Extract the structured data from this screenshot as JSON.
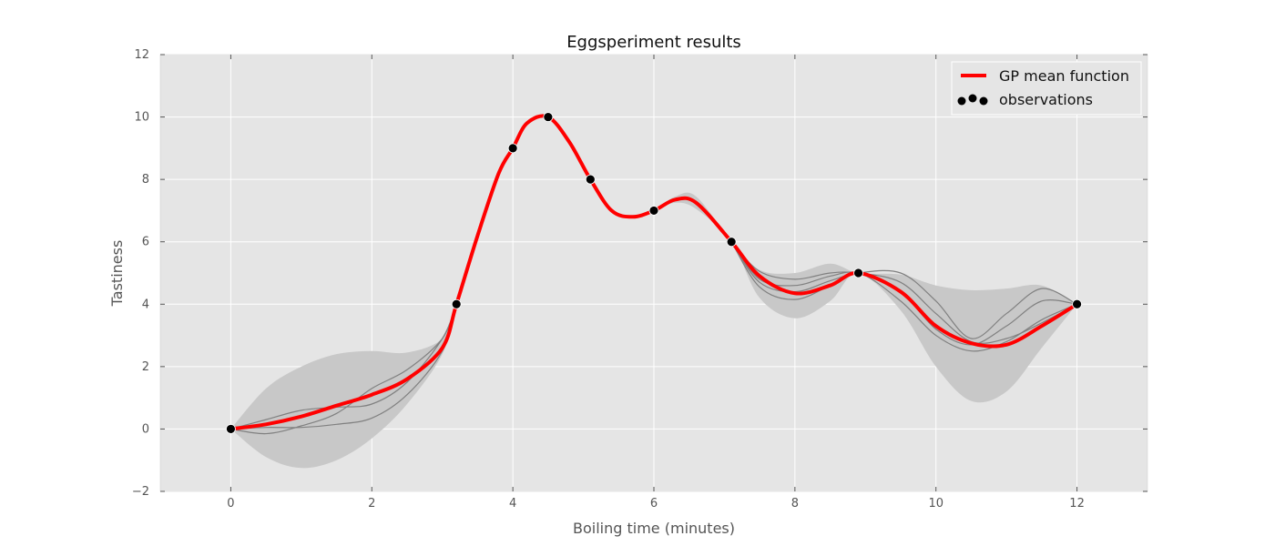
{
  "chart_data": {
    "type": "line",
    "title": "Eggsperiment results",
    "xlabel": "Boiling time (minutes)",
    "ylabel": "Tastiness",
    "xlim": [
      -1,
      13
    ],
    "ylim": [
      -2,
      12
    ],
    "xticks": [
      0,
      2,
      4,
      6,
      8,
      10,
      12
    ],
    "yticks": [
      -2,
      0,
      2,
      4,
      6,
      8,
      10,
      12
    ],
    "ytick_labels": [
      "−2",
      "0",
      "2",
      "4",
      "6",
      "8",
      "10",
      "12"
    ],
    "grid": true,
    "legend_position": "top-right",
    "colors": {
      "background": "#e5e5e5",
      "band": "#c8c8c8",
      "mean": "#ff0000",
      "samples": "#808080",
      "points": "#000000",
      "grid": "#ffffff"
    },
    "observations": {
      "name": "observations",
      "x": [
        0,
        3.2,
        4.0,
        4.5,
        5.1,
        6.0,
        7.1,
        8.9,
        12
      ],
      "y": [
        0,
        4,
        9,
        10,
        8,
        7,
        6,
        5,
        4
      ]
    },
    "mean": {
      "name": "GP mean function",
      "x": [
        0,
        0.5,
        1,
        1.5,
        2,
        2.5,
        3,
        3.2,
        3.5,
        3.8,
        4.0,
        4.2,
        4.5,
        4.8,
        5.1,
        5.4,
        5.7,
        6.0,
        6.3,
        6.6,
        7.1,
        7.5,
        8.0,
        8.5,
        8.9,
        9.5,
        10.0,
        10.5,
        11.0,
        11.5,
        12.0
      ],
      "y": [
        0,
        0.15,
        0.4,
        0.75,
        1.1,
        1.6,
        2.6,
        4.0,
        6.2,
        8.2,
        9.0,
        9.8,
        10.0,
        9.2,
        8.0,
        7.0,
        6.8,
        7.0,
        7.35,
        7.25,
        6.0,
        4.9,
        4.35,
        4.6,
        5.0,
        4.4,
        3.3,
        2.75,
        2.7,
        3.3,
        4.0
      ]
    },
    "band": {
      "x": [
        0,
        0.5,
        1,
        1.5,
        2,
        2.5,
        3,
        3.2,
        3.5,
        3.8,
        4.0,
        4.2,
        4.5,
        4.8,
        5.1,
        5.4,
        5.7,
        6.0,
        6.3,
        6.6,
        7.1,
        7.5,
        8.0,
        8.5,
        8.9,
        9.5,
        10.0,
        10.5,
        11.0,
        11.5,
        12.0
      ],
      "upper": [
        0,
        1.3,
        2.0,
        2.4,
        2.5,
        2.45,
        2.9,
        4.0,
        6.2,
        8.2,
        9.0,
        9.8,
        10.0,
        9.2,
        8.0,
        7.0,
        6.8,
        7.0,
        7.45,
        7.45,
        6.0,
        5.1,
        5.0,
        5.3,
        5.0,
        4.95,
        4.6,
        4.45,
        4.5,
        4.6,
        4.0
      ],
      "lower": [
        0,
        -0.9,
        -1.25,
        -1.0,
        -0.3,
        0.8,
        2.4,
        4.0,
        6.2,
        8.2,
        9.0,
        9.8,
        10.0,
        9.2,
        8.0,
        7.0,
        6.8,
        7.0,
        7.25,
        7.05,
        6.0,
        4.2,
        3.55,
        4.1,
        5.0,
        3.8,
        2.0,
        0.9,
        1.2,
        2.6,
        4.0
      ]
    },
    "samples": [
      {
        "x": [
          0,
          0.5,
          1,
          1.5,
          2,
          2.5,
          3,
          3.2
        ],
        "y": [
          0,
          0.3,
          0.6,
          0.7,
          0.8,
          1.5,
          2.9,
          4.0
        ]
      },
      {
        "x": [
          0,
          0.5,
          1,
          1.5,
          2,
          2.5,
          3,
          3.2
        ],
        "y": [
          0,
          -0.15,
          0.1,
          0.5,
          1.3,
          1.9,
          2.9,
          4.0
        ]
      },
      {
        "x": [
          0,
          0.5,
          1,
          1.5,
          2,
          2.5,
          3,
          3.2
        ],
        "y": [
          0,
          0.05,
          0.05,
          0.15,
          0.35,
          1.1,
          2.5,
          4.0
        ]
      },
      {
        "x": [
          7.1,
          7.5,
          8.0,
          8.5,
          8.9,
          9.5,
          10.0,
          10.5,
          11.0,
          11.5,
          12.0
        ],
        "y": [
          6.0,
          5.05,
          4.8,
          5.0,
          5.0,
          4.7,
          3.7,
          2.8,
          2.9,
          3.4,
          4.0
        ]
      },
      {
        "x": [
          7.1,
          7.5,
          8.0,
          8.5,
          8.9,
          9.5,
          10.0,
          10.5,
          11.0,
          11.5,
          12.0
        ],
        "y": [
          6.0,
          4.8,
          4.6,
          4.9,
          5.0,
          4.4,
          3.2,
          2.7,
          3.3,
          4.1,
          4.0
        ]
      },
      {
        "x": [
          7.1,
          7.5,
          8.0,
          8.5,
          8.9,
          9.5,
          10.0,
          10.5,
          11.0,
          11.5,
          12.0
        ],
        "y": [
          6.0,
          4.55,
          4.15,
          4.6,
          5.0,
          4.1,
          3.0,
          2.5,
          2.8,
          3.5,
          4.0
        ]
      },
      {
        "x": [
          7.1,
          7.5,
          8.0,
          8.5,
          8.9,
          9.5,
          10.0,
          10.5,
          11.0,
          11.5,
          12.0
        ],
        "y": [
          6.0,
          4.7,
          4.4,
          4.75,
          5.0,
          5.0,
          4.1,
          2.9,
          3.7,
          4.5,
          4.0
        ]
      }
    ]
  }
}
